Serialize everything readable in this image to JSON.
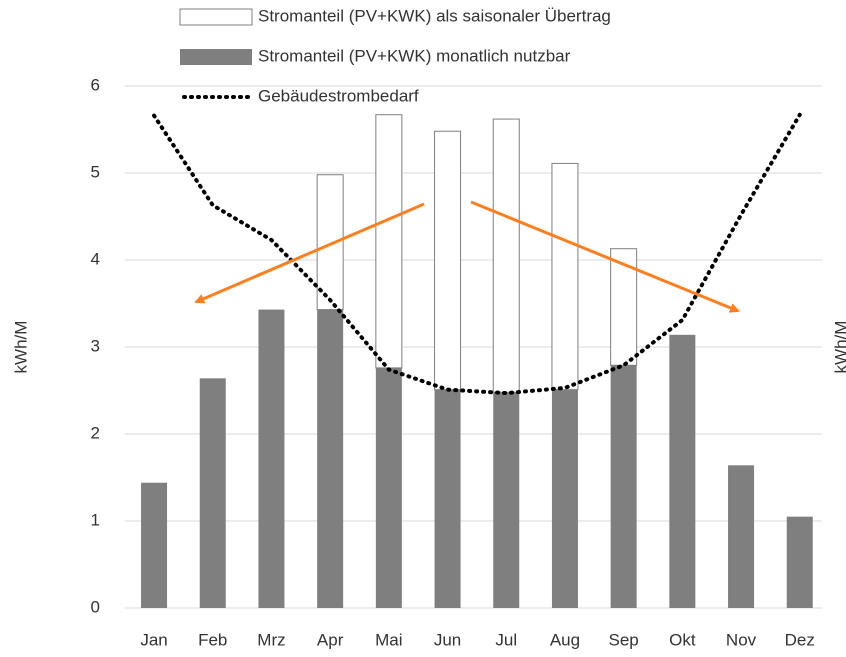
{
  "chart_data": {
    "type": "stacked-bar-line",
    "y_label": "kWh/M",
    "y2_label": "kWh/M",
    "categories": [
      "Jan",
      "Feb",
      "Mrz",
      "Apr",
      "Mai",
      "Jun",
      "Jul",
      "Aug",
      "Sep",
      "Okt",
      "Nov",
      "Dez"
    ],
    "series": [
      {
        "name": "Stromanteil (PV+KWK) als saisonaler Übertrag",
        "type": "bar",
        "color": "#ffffff",
        "stroke": "#7f7f7f",
        "values": [
          0,
          0,
          0,
          1.55,
          2.91,
          2.97,
          3.14,
          2.6,
          1.34,
          0,
          0,
          0
        ]
      },
      {
        "name": "Stromanteil (PV+KWK) monatlich nutzbar",
        "type": "bar",
        "color": "#7f7f7f",
        "values": [
          1.44,
          2.64,
          3.43,
          3.43,
          2.76,
          2.51,
          2.48,
          2.51,
          2.79,
          3.14,
          1.64,
          1.05
        ]
      },
      {
        "name": "Gebäudestrombedarf",
        "type": "line",
        "color": "#000000",
        "values": [
          5.66,
          4.63,
          4.23,
          3.54,
          2.74,
          2.51,
          2.47,
          2.53,
          2.79,
          3.31,
          4.52,
          5.67
        ]
      }
    ],
    "ylim": [
      0,
      6
    ],
    "yticks": [
      0,
      1,
      2,
      3,
      4,
      5,
      6
    ],
    "grid": true
  }
}
